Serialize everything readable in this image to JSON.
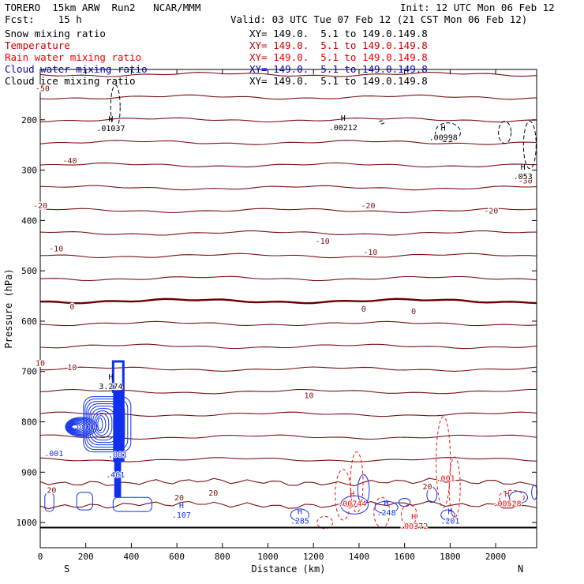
{
  "header": {
    "model": "TORERO  15km ARW  Run2   NCAR/MMM",
    "init": "Init: 12 UTC Mon 06 Feb 12",
    "fcst": "Fcst:    15 h",
    "valid": "Valid: 03 UTC Tue 07 Feb 12 (21 CST Mon 06 Feb 12)"
  },
  "fields": [
    {
      "name": "Snow mixing ratio",
      "xy": "XY= 149.0.  5.1 to 149.0.149.8",
      "color": "#000000"
    },
    {
      "name": "Temperature",
      "xy": "XY= 149.0.  5.1 to 149.0.149.8",
      "color": "#cc0000"
    },
    {
      "name": "Rain water mixing ratio",
      "xy": "XY= 149.0.  5.1 to 149.0.149.8",
      "color": "#ee0000"
    },
    {
      "name": "Cloud water mixing ratio",
      "xy": "XY= 149.0.  5.1 to 149.0.149.8",
      "color": "#0000cc"
    },
    {
      "name": "Cloud ice mixing ratio",
      "xy": "XY= 149.0.  5.1 to 149.0.149.8",
      "color": "#000000"
    }
  ],
  "colors": {
    "temperature": "#7a1010",
    "zero_isotherm": "#6b0000",
    "rain": "#ee1111",
    "cloud_water": "#1030ee",
    "snow_ice": "#000000"
  },
  "chart_data": {
    "type": "contour",
    "x_label": "Distance (km)",
    "y_label": "Pressure (hPa)",
    "x_range": [
      0,
      2180
    ],
    "y_range": [
      100,
      1050
    ],
    "y_scale": "linear",
    "x_ticks": [
      0,
      200,
      400,
      600,
      800,
      1000,
      1200,
      1400,
      1600,
      1800,
      2000
    ],
    "y_ticks": [
      200,
      300,
      400,
      500,
      600,
      700,
      800,
      900,
      1000
    ],
    "x_endpoint_labels": [
      "S",
      "N"
    ],
    "temperature_contour_labels": [
      {
        "x": 10,
        "p": 137,
        "text": "-50"
      },
      {
        "x": 130,
        "p": 280,
        "text": "-40"
      },
      {
        "x": 2130,
        "p": 320,
        "text": "-30"
      },
      {
        "x": 0,
        "p": 370,
        "text": "-20"
      },
      {
        "x": 1440,
        "p": 370,
        "text": "-20"
      },
      {
        "x": 1980,
        "p": 380,
        "text": "-20"
      },
      {
        "x": 70,
        "p": 455,
        "text": "-10"
      },
      {
        "x": 1240,
        "p": 440,
        "text": "-10"
      },
      {
        "x": 1450,
        "p": 462,
        "text": "-10"
      },
      {
        "x": 140,
        "p": 570,
        "text": "0"
      },
      {
        "x": 1420,
        "p": 575,
        "text": "0"
      },
      {
        "x": 1640,
        "p": 580,
        "text": "0"
      },
      {
        "x": 0,
        "p": 682,
        "text": "10"
      },
      {
        "x": 140,
        "p": 691,
        "text": "10"
      },
      {
        "x": 1180,
        "p": 747,
        "text": "10"
      },
      {
        "x": 50,
        "p": 935,
        "text": "20"
      },
      {
        "x": 610,
        "p": 950,
        "text": "20"
      },
      {
        "x": 760,
        "p": 940,
        "text": "20"
      },
      {
        "x": 1700,
        "p": 928,
        "text": "20"
      }
    ],
    "extrema": [
      {
        "x": 310,
        "p": 210,
        "mark": "H",
        "value": ".01037",
        "field": "snow"
      },
      {
        "x": 1330,
        "p": 208,
        "mark": "H",
        "value": ".00212",
        "field": "snow"
      },
      {
        "x": 1770,
        "p": 228,
        "mark": "H",
        "value": ".00998",
        "field": "snow"
      },
      {
        "x": 2120,
        "p": 305,
        "mark": "H",
        "value": ".053",
        "field": "snow"
      },
      {
        "x": 310,
        "p": 722,
        "mark": "H",
        "value": "3.274",
        "field": "ice"
      },
      {
        "x": 340,
        "p": 858,
        "mark": "",
        "value": ".001",
        "field": "cloud_water"
      },
      {
        "x": 60,
        "p": 856,
        "mark": "",
        "value": ".001",
        "field": "cloud_water"
      },
      {
        "x": 330,
        "p": 898,
        "mark": "",
        "value": ".401",
        "field": "cloud_water"
      },
      {
        "x": 620,
        "p": 978,
        "mark": "H",
        "value": ".107",
        "field": "cloud_water"
      },
      {
        "x": 1140,
        "p": 990,
        "mark": "H",
        "value": ".285",
        "field": "cloud_water"
      },
      {
        "x": 1370,
        "p": 955,
        "mark": "H",
        "value": ".00744",
        "field": "rain"
      },
      {
        "x": 1520,
        "p": 973,
        "mark": "H",
        "value": ".248",
        "field": "cloud_water"
      },
      {
        "x": 1640,
        "p": 1000,
        "mark": "H",
        "value": ".00372",
        "field": "rain"
      },
      {
        "x": 1800,
        "p": 990,
        "mark": "H",
        "value": ".201",
        "field": "cloud_water"
      },
      {
        "x": 1780,
        "p": 905,
        "mark": "",
        "value": ".001",
        "field": "rain"
      },
      {
        "x": 2050,
        "p": 955,
        "mark": "H",
        "value": ".00528",
        "field": "rain"
      }
    ]
  }
}
